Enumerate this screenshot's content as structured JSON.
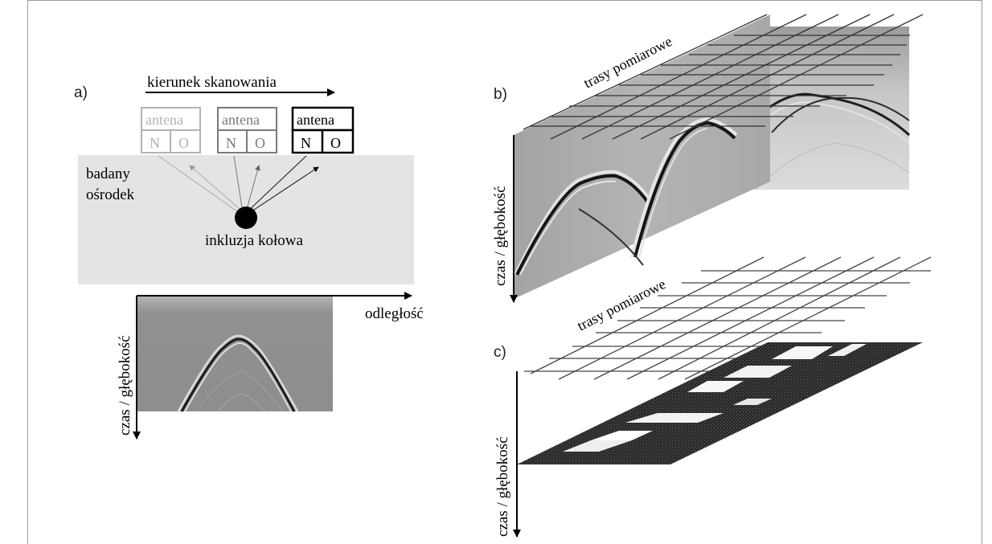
{
  "panel_labels": {
    "a": "a)",
    "b": "b)",
    "c": "c)"
  },
  "panel_a": {
    "scan_direction": "kierunek skanowania",
    "antennas": [
      {
        "label": "antena",
        "n": "N",
        "o": "O",
        "color": "#b3b3b3"
      },
      {
        "label": "antena",
        "n": "N",
        "o": "O",
        "color": "#7a7a7a"
      },
      {
        "label": "antena",
        "n": "N",
        "o": "O",
        "color": "#000000"
      }
    ],
    "medium_line1": "badany",
    "medium_line2": "ośrodek",
    "inclusion": "inkluzja kołowa",
    "x_axis": "odległość",
    "y_axis": "czas / głębokość"
  },
  "panel_b": {
    "traces": "trasy pomiarowe",
    "y_axis": "czas / głębokość"
  },
  "panel_c": {
    "traces": "trasy pomiarowe",
    "y_axis": "czas / głębokość"
  },
  "colors": {
    "medium": "#e3e5e5",
    "radargram": "#8f8f8f",
    "slice_dark": "#2a2a2a"
  }
}
